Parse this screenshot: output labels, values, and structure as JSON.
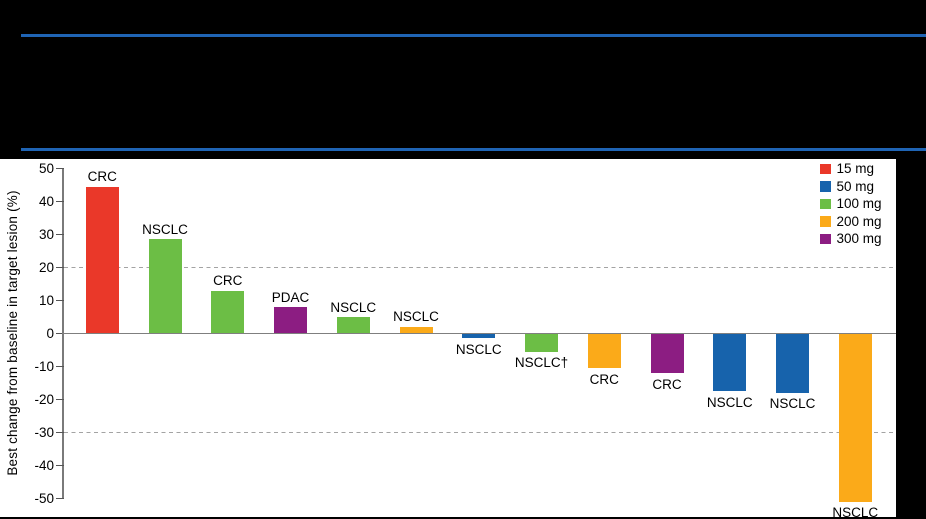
{
  "header": {
    "rule_color": "#1F64B4"
  },
  "colors": {
    "background": "#000000",
    "panel": "#FFFFFF",
    "axis": "#7A7A7A",
    "reference_line": "#A3A3A3",
    "text": "#000000"
  },
  "chart_data": {
    "type": "bar",
    "subtype": "waterfall",
    "title": "",
    "ylabel": "Best change from baseline in target lesion (%)",
    "xlabel": "",
    "ylim": [
      -50,
      50
    ],
    "yticks": [
      50,
      40,
      30,
      20,
      10,
      0,
      -10,
      -20,
      -30,
      -40,
      -50
    ],
    "reference_lines": [
      20,
      -30
    ],
    "grid": false,
    "legend_position": "top-right",
    "doses": [
      {
        "label": "15 mg",
        "color": "#EA3829"
      },
      {
        "label": "50 mg",
        "color": "#1763AC"
      },
      {
        "label": "100 mg",
        "color": "#6CBE45"
      },
      {
        "label": "200 mg",
        "color": "#FBAA19"
      },
      {
        "label": "300 mg",
        "color": "#8C1D82"
      }
    ],
    "bars": [
      {
        "label": "CRC",
        "dose": "15 mg",
        "value": 44.5
      },
      {
        "label": "NSCLC",
        "dose": "100 mg",
        "value": 28.5
      },
      {
        "label": "CRC",
        "dose": "100 mg",
        "value": 13
      },
      {
        "label": "PDAC",
        "dose": "300 mg",
        "value": 8
      },
      {
        "label": "NSCLC",
        "dose": "100 mg",
        "value": 5
      },
      {
        "label": "NSCLC",
        "dose": "200 mg",
        "value": 2
      },
      {
        "label": "NSCLC",
        "dose": "50 mg",
        "value": -1.5
      },
      {
        "label": "NSCLC†",
        "dose": "100 mg",
        "value": -5.5
      },
      {
        "label": "CRC",
        "dose": "200 mg",
        "value": -10.5
      },
      {
        "label": "CRC",
        "dose": "300 mg",
        "value": -12
      },
      {
        "label": "NSCLC",
        "dose": "50 mg",
        "value": -17.5
      },
      {
        "label": "NSCLC",
        "dose": "50 mg",
        "value": -18
      },
      {
        "label": "NSCLC",
        "dose": "200 mg",
        "value": -51
      }
    ]
  }
}
